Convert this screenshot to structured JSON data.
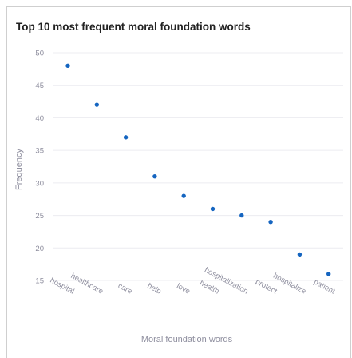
{
  "chart_data": {
    "type": "scatter",
    "title": "Top 10 most frequent moral foundation words",
    "xlabel": "Moral foundation words",
    "ylabel": "Frequency",
    "categories": [
      "hospital",
      "healthcare",
      "care",
      "help",
      "love",
      "health",
      "hospitalization",
      "protect",
      "hospitalize",
      "patient"
    ],
    "series": [
      {
        "values": [
          48,
          42,
          37,
          31,
          28,
          26,
          25,
          24,
          19,
          16
        ]
      }
    ],
    "y_ticks": [
      15,
      20,
      25,
      30,
      35,
      40,
      45,
      50
    ],
    "ylim": [
      15,
      50
    ],
    "grid": true,
    "marker_color": "#1565c0"
  }
}
